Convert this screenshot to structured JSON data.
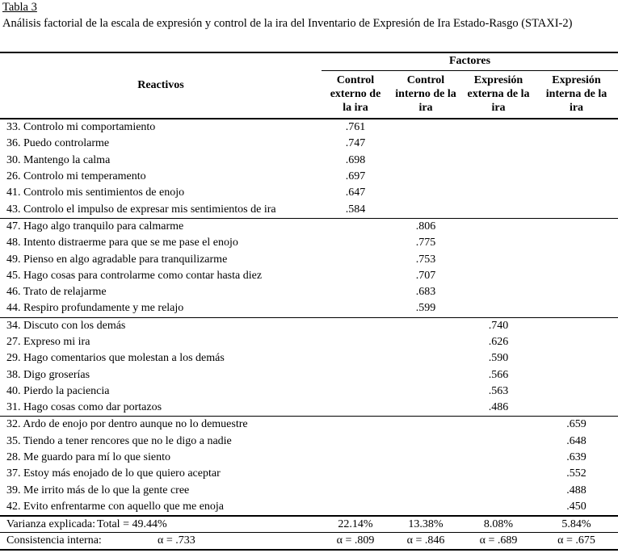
{
  "title": "Tabla 3",
  "subtitle": "Análisis factorial de la escala de expresión y control de la ira del Inventario de Expresión de Ira Estado-Rasgo (STAXI-2)",
  "table": {
    "reactivos_header": "Reactivos",
    "factores_header": "Factores",
    "factor_columns": [
      "Control externo de la ira",
      "Control interno de la ira",
      "Expresión externa de la ira",
      "Expresión interna de la ira"
    ],
    "groups": [
      {
        "factor_index": 0,
        "rows": [
          {
            "label": "33. Controlo mi comportamiento",
            "value": ".761"
          },
          {
            "label": "36. Puedo controlarme",
            "value": ".747"
          },
          {
            "label": "30. Mantengo la calma",
            "value": ".698"
          },
          {
            "label": "26. Controlo mi temperamento",
            "value": ".697"
          },
          {
            "label": "41. Controlo mis sentimientos de enojo",
            "value": ".647"
          },
          {
            "label": "43. Controlo el impulso de expresar mis sentimientos de ira",
            "value": ".584"
          }
        ]
      },
      {
        "factor_index": 1,
        "rows": [
          {
            "label": "47. Hago algo tranquilo para calmarme",
            "value": ".806"
          },
          {
            "label": "48. Intento distraerme para que se me pase el enojo",
            "value": ".775"
          },
          {
            "label": "49. Pienso en algo agradable para tranquilizarme",
            "value": ".753"
          },
          {
            "label": "45. Hago cosas para controlarme como contar hasta diez",
            "value": ".707"
          },
          {
            "label": "46. Trato de relajarme",
            "value": ".683"
          },
          {
            "label": "44. Respiro profundamente y me relajo",
            "value": ".599"
          }
        ]
      },
      {
        "factor_index": 2,
        "rows": [
          {
            "label": "34. Discuto con los demás",
            "value": ".740"
          },
          {
            "label": "27. Expreso mi ira",
            "value": ".626"
          },
          {
            "label": "29. Hago comentarios que molestan a los demás",
            "value": ".590"
          },
          {
            "label": "38. Digo groserías",
            "value": ".566"
          },
          {
            "label": "40. Pierdo la paciencia",
            "value": ".563"
          },
          {
            "label": "31. Hago cosas como dar portazos",
            "value": ".486"
          }
        ]
      },
      {
        "factor_index": 3,
        "rows": [
          {
            "label": "32. Ardo de enojo por dentro aunque no lo demuestre",
            "value": ".659"
          },
          {
            "label": "35. Tiendo a tener rencores que no le digo a nadie",
            "value": ".648"
          },
          {
            "label": "28. Me guardo para mí lo que siento",
            "value": ".639"
          },
          {
            "label": "37. Estoy más enojado de lo que quiero aceptar",
            "value": ".552"
          },
          {
            "label": "39. Me irrito más de lo que la gente cree",
            "value": ".488"
          },
          {
            "label": "42. Evito enfrentarme con aquello que me enoja",
            "value": ".450"
          }
        ]
      }
    ],
    "variance_row": {
      "label": "Varianza explicada:",
      "total": "Total = 49.44%",
      "values": [
        "22.14%",
        "13.38%",
        "8.08%",
        "5.84%"
      ]
    },
    "consistency_row": {
      "label": "Consistencia interna:",
      "total": "α = .733",
      "values": [
        "α = .809",
        "α = .846",
        "α = .689",
        "α = .675"
      ]
    }
  }
}
